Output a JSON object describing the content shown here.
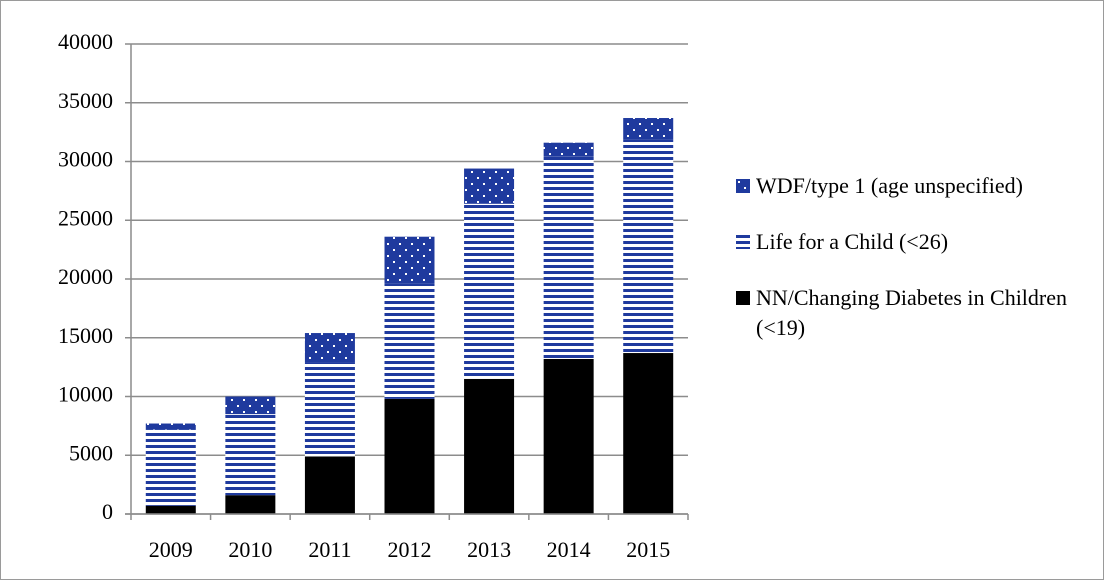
{
  "chart_data": {
    "type": "stacked_bar",
    "categories": [
      "2009",
      "2010",
      "2011",
      "2012",
      "2013",
      "2014",
      "2015"
    ],
    "series": [
      {
        "name": "NN/Changing Diabetes in Children (<19)",
        "color": "#000000",
        "pattern": "solid",
        "values": [
          700,
          1600,
          4900,
          9800,
          11500,
          13200,
          13700
        ]
      },
      {
        "name": "Life for a Child (<26)",
        "color": "#1f3a9e",
        "pattern": "stripes",
        "values": [
          6500,
          6900,
          8000,
          9800,
          14900,
          17200,
          18200
        ]
      },
      {
        "name": "WDF/type 1 (age unspecified)",
        "color": "#1f3a9e",
        "pattern": "dots",
        "values": [
          500,
          1500,
          2500,
          4000,
          3000,
          1200,
          1800
        ]
      }
    ],
    "ylim": [
      0,
      40000
    ],
    "yticks": [
      0,
      5000,
      10000,
      15000,
      20000,
      25000,
      30000,
      35000,
      40000
    ],
    "grid": true,
    "legend": "right"
  }
}
